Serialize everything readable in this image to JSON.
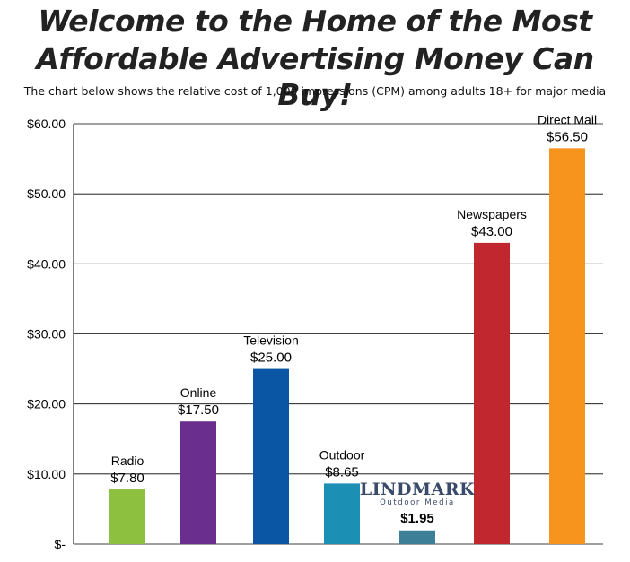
{
  "header": {
    "headline_line1": "Welcome to the Home of the Most",
    "headline_line2": "Affordable Advertising Money Can Buy!",
    "subtitle": "The chart below shows the relative cost of 1,000 impressions (CPM) among adults 18+ for major media"
  },
  "logo": {
    "name": "LINDMARK",
    "tagline": "Outdoor Media"
  },
  "chart_data": {
    "type": "bar",
    "categories": [
      "Radio",
      "Online",
      "Television",
      "Outdoor",
      "LINDMARK Outdoor Media",
      "Newspapers",
      "Direct Mail"
    ],
    "values": [
      7.8,
      17.5,
      25.0,
      8.65,
      1.95,
      43.0,
      56.5
    ],
    "value_labels": [
      "$7.80",
      "$17.50",
      "$25.00",
      "$8.65",
      "$1.95",
      "$43.00",
      "$56.50"
    ],
    "colors": [
      "#8dc03f",
      "#6a2f8e",
      "#0a56a4",
      "#1c8fb5",
      "#3c7f96",
      "#c0272e",
      "#f7941d"
    ],
    "highlight_index": 4,
    "ylim": [
      0,
      60
    ],
    "yticks": [
      0,
      10,
      20,
      30,
      40,
      50,
      60
    ],
    "ytick_labels": [
      "$-",
      "$10.00",
      "$20.00",
      "$30.00",
      "$40.00",
      "$50.00",
      "$60.00"
    ],
    "grid": true,
    "title": "",
    "xlabel": "",
    "ylabel": ""
  }
}
